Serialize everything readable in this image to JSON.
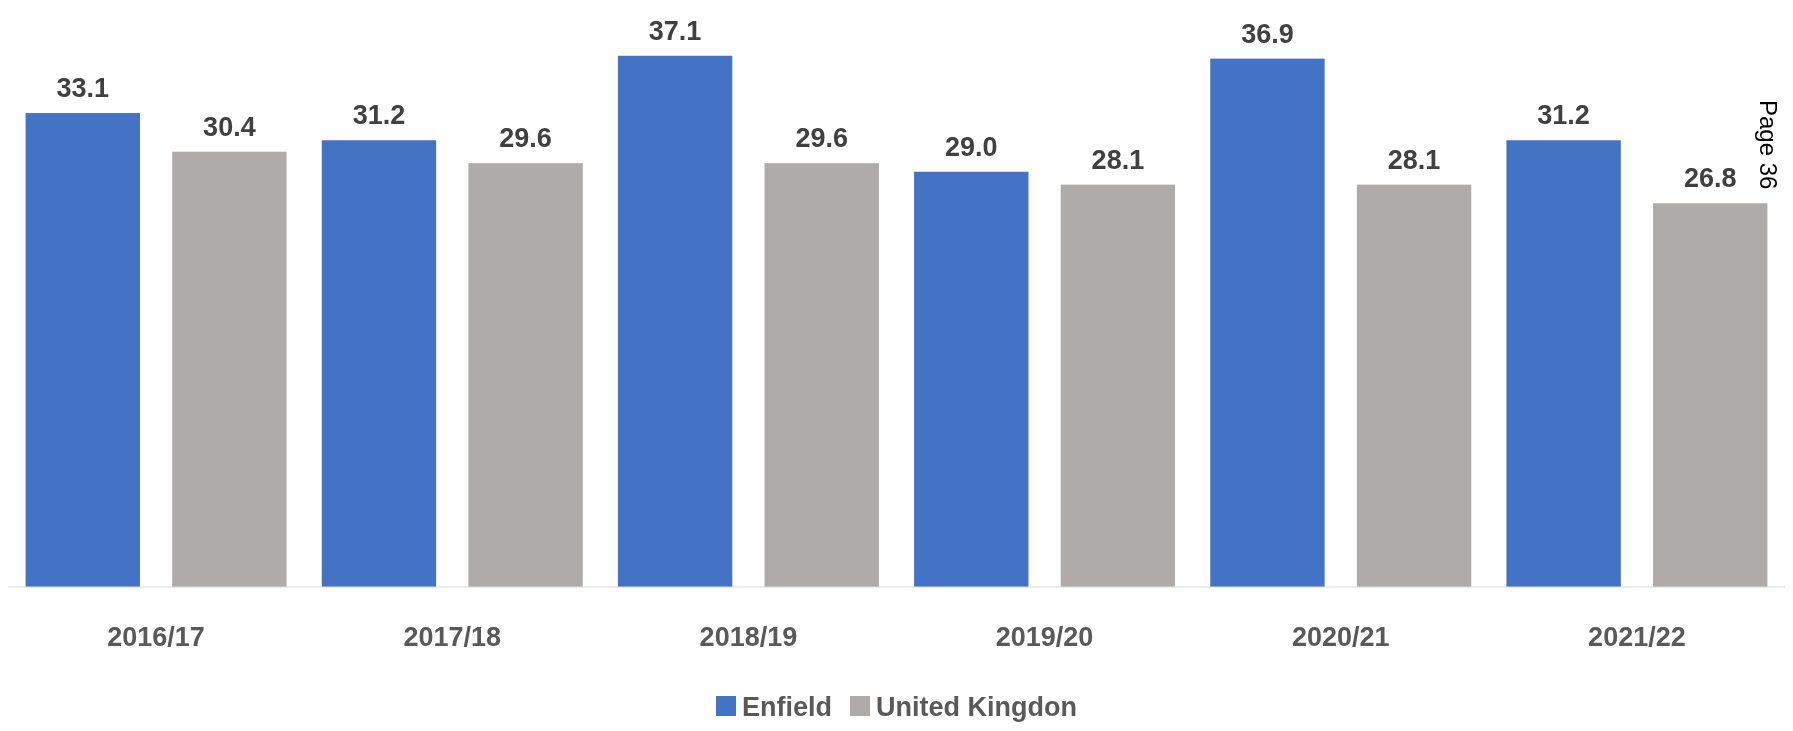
{
  "chart_data": {
    "type": "bar",
    "categories": [
      "2016/17",
      "2017/18",
      "2018/19",
      "2019/20",
      "2020/21",
      "2021/22"
    ],
    "series": [
      {
        "name": "Enfield",
        "color": "#4472c4",
        "values": [
          33.1,
          31.2,
          37.1,
          29.0,
          36.9,
          31.2
        ],
        "value_labels": [
          "33.1",
          "31.2",
          "37.1",
          "29.0",
          "36.9",
          "31.2"
        ]
      },
      {
        "name": "United Kingdon",
        "color": "#afabab",
        "values": [
          30.4,
          29.6,
          29.6,
          28.1,
          28.1,
          26.8
        ],
        "value_labels": [
          "30.4",
          "29.6",
          "29.6",
          "28.1",
          "28.1",
          "26.8"
        ]
      }
    ],
    "legend": "bottom",
    "annotations": [
      "Page 36"
    ]
  }
}
